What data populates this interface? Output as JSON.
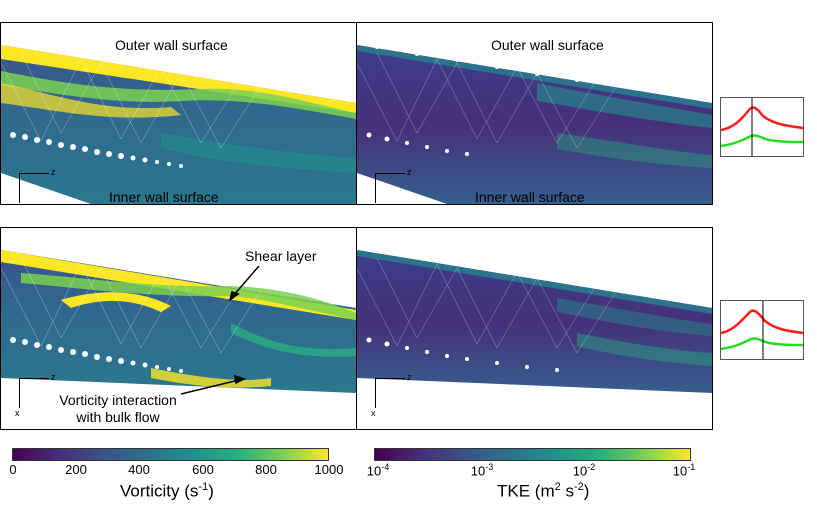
{
  "panels": {
    "top_left": {
      "top_label": "Outer wall surface",
      "bottom_label": "Inner wall surface"
    },
    "top_right": {
      "top_label": "Outer wall surface",
      "bottom_label": "Inner wall surface"
    }
  },
  "annotations": {
    "shear_layer": "Shear layer",
    "vorticity_line1": "Vorticity interaction",
    "vorticity_line2": "with bulk flow"
  },
  "axes_labels": {
    "z": "z",
    "x": "x"
  },
  "colorbar_vorticity": {
    "ticks": [
      "0",
      "200",
      "400",
      "600",
      "800",
      "1000"
    ],
    "title": "Vorticity (s",
    "title_sup": "-1",
    "title_end": ")"
  },
  "colorbar_tke": {
    "ticks": [
      {
        "base": "10",
        "exp": "-4"
      },
      {
        "base": "10",
        "exp": "-3"
      },
      {
        "base": "10",
        "exp": "-2"
      },
      {
        "base": "10",
        "exp": "-1"
      }
    ],
    "title": "TKE (m",
    "title_sup1": "2",
    "title_mid": " s",
    "title_sup2": "-2",
    "title_end": ")"
  },
  "colors": {
    "viridis_dark": "#440154",
    "viridis_blue": "#31688e",
    "viridis_teal": "#35b779",
    "viridis_yellow": "#fde725",
    "waveform_red": "#ff1a1a",
    "waveform_green": "#22dd22"
  }
}
